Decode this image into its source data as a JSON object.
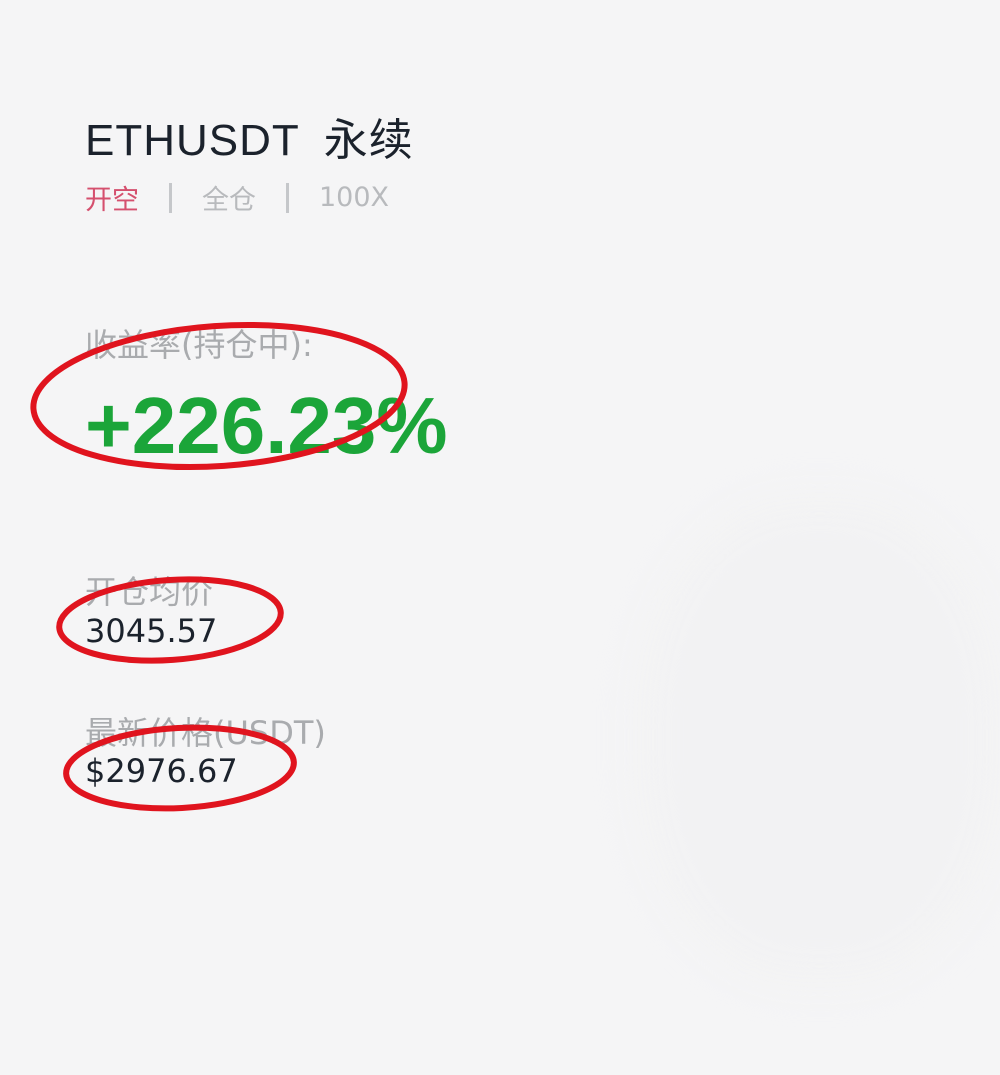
{
  "header": {
    "symbol": "ETHUSDT",
    "contract_type": "永续"
  },
  "meta": {
    "side": "开空",
    "margin_mode": "全仓",
    "leverage": "100X"
  },
  "pnl": {
    "label": "收益率(持仓中):",
    "value": "+226.23%"
  },
  "entry_price": {
    "label": "开仓均价",
    "value": "3045.57"
  },
  "mark_price": {
    "label": "最新价格(USDT)",
    "value": "$2976.67"
  },
  "colors": {
    "profit": "#1ba539",
    "short": "#d5506e",
    "annotation": "#e0141e"
  }
}
